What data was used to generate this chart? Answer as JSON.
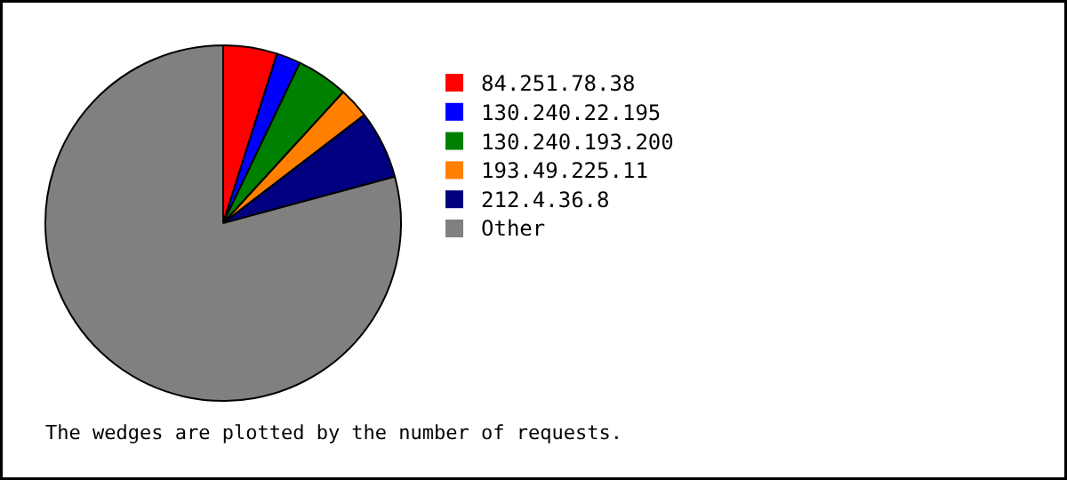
{
  "chart_data": {
    "type": "pie",
    "categories": [
      "84.251.78.38",
      "130.240.22.195",
      "130.240.193.200",
      "193.49.225.11",
      "212.4.36.8",
      "Other"
    ],
    "values": [
      4.9,
      2.2,
      4.7,
      2.8,
      6.2,
      79.2
    ],
    "colors": [
      "#ff0000",
      "#0000ff",
      "#008000",
      "#ff8000",
      "#000080",
      "#808080"
    ],
    "legend": "right",
    "annotations": [
      "The wedges are plotted by the number of requests."
    ]
  }
}
